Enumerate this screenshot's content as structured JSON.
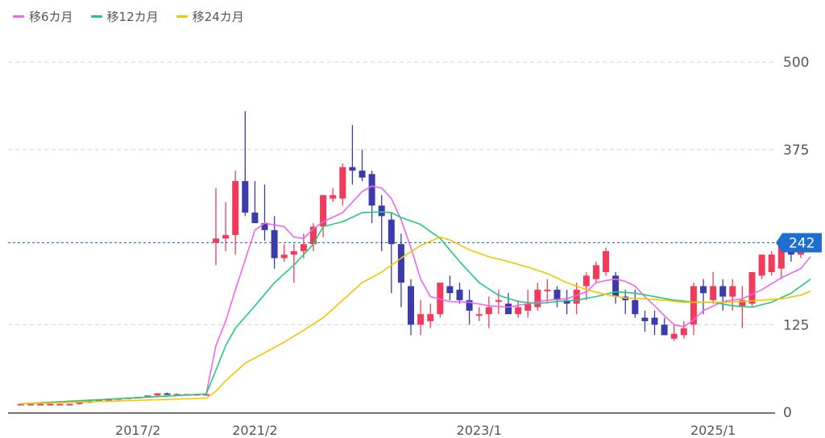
{
  "legend": [
    {
      "label": "移6カ月",
      "color": "#ee66ee"
    },
    {
      "label": "移12カ月",
      "color": "#22cc77"
    },
    {
      "label": "移24カ月",
      "color": "#f5c400"
    }
  ],
  "chart_data": {
    "type": "candlestick",
    "ylim": [
      0,
      500
    ],
    "yticks": [
      "500",
      "375",
      "125",
      "0"
    ],
    "xticks": [
      {
        "index": 12,
        "label": "2017/2"
      },
      {
        "index": 24,
        "label": "2021/2"
      },
      {
        "index": 47,
        "label": "2023/1"
      },
      {
        "index": 71,
        "label": "2025/1"
      }
    ],
    "colors": {
      "up": "#f23a5c",
      "down": "#3b3baa",
      "current": "#1e6fd1",
      "grid": "#d0d0d0"
    },
    "current_price": {
      "value": 242,
      "label": "242"
    },
    "candles": [
      [
        12,
        12,
        11,
        12
      ],
      [
        12,
        12,
        11,
        12
      ],
      [
        12,
        12,
        11,
        12
      ],
      [
        12,
        12,
        11,
        12
      ],
      [
        12,
        12,
        11,
        12
      ],
      [
        12,
        12,
        11,
        12
      ],
      [
        12,
        14,
        11,
        14
      ],
      [
        14,
        16,
        13,
        16
      ],
      [
        16,
        18,
        15,
        18
      ],
      [
        18,
        19,
        17,
        19
      ],
      [
        19,
        20,
        18,
        20
      ],
      [
        20,
        21,
        19,
        21
      ],
      [
        21,
        22,
        20,
        22
      ],
      [
        22,
        24,
        21,
        24
      ],
      [
        24,
        27,
        23,
        27
      ],
      [
        27,
        28,
        25,
        26
      ],
      [
        26,
        27,
        25,
        26
      ],
      [
        26,
        26,
        25,
        26
      ],
      [
        26,
        26,
        25,
        26
      ],
      [
        26,
        26,
        25,
        26
      ],
      [
        242,
        320,
        210,
        248
      ],
      [
        248,
        300,
        230,
        253
      ],
      [
        253,
        345,
        225,
        330
      ],
      [
        330,
        430,
        280,
        285
      ],
      [
        285,
        330,
        270,
        270
      ],
      [
        270,
        325,
        245,
        260
      ],
      [
        260,
        280,
        205,
        220
      ],
      [
        220,
        240,
        215,
        225
      ],
      [
        225,
        240,
        185,
        230
      ],
      [
        230,
        255,
        220,
        240
      ],
      [
        240,
        270,
        230,
        265
      ],
      [
        265,
        310,
        250,
        310
      ],
      [
        305,
        320,
        300,
        310
      ],
      [
        305,
        355,
        295,
        350
      ],
      [
        350,
        410,
        325,
        345
      ],
      [
        345,
        375,
        330,
        335
      ],
      [
        340,
        345,
        270,
        295
      ],
      [
        295,
        310,
        230,
        280
      ],
      [
        275,
        285,
        170,
        240
      ],
      [
        240,
        255,
        150,
        185
      ],
      [
        180,
        190,
        110,
        125
      ],
      [
        125,
        160,
        110,
        140
      ],
      [
        130,
        155,
        120,
        140
      ],
      [
        140,
        185,
        135,
        185
      ],
      [
        180,
        195,
        160,
        170
      ],
      [
        175,
        185,
        155,
        160
      ],
      [
        160,
        175,
        125,
        145
      ],
      [
        140,
        150,
        130,
        140
      ],
      [
        140,
        165,
        120,
        150
      ],
      [
        160,
        175,
        140,
        160
      ],
      [
        155,
        170,
        140,
        140
      ],
      [
        140,
        160,
        135,
        150
      ],
      [
        145,
        175,
        135,
        155
      ],
      [
        150,
        185,
        145,
        175
      ],
      [
        175,
        190,
        155,
        175
      ],
      [
        175,
        180,
        150,
        160
      ],
      [
        160,
        175,
        140,
        155
      ],
      [
        155,
        185,
        140,
        175
      ],
      [
        180,
        200,
        160,
        195
      ],
      [
        190,
        215,
        185,
        210
      ],
      [
        200,
        235,
        195,
        230
      ],
      [
        195,
        200,
        155,
        165
      ],
      [
        165,
        175,
        140,
        160
      ],
      [
        160,
        175,
        135,
        140
      ],
      [
        135,
        145,
        115,
        130
      ],
      [
        135,
        145,
        110,
        125
      ],
      [
        125,
        135,
        110,
        110
      ],
      [
        105,
        125,
        102,
        112
      ],
      [
        110,
        130,
        105,
        120
      ],
      [
        125,
        185,
        110,
        180
      ],
      [
        180,
        190,
        140,
        170
      ],
      [
        160,
        200,
        155,
        180
      ],
      [
        180,
        190,
        145,
        165
      ],
      [
        165,
        190,
        145,
        180
      ],
      [
        150,
        180,
        120,
        160
      ],
      [
        155,
        195,
        150,
        200
      ],
      [
        195,
        225,
        190,
        225
      ],
      [
        200,
        230,
        195,
        225
      ],
      [
        205,
        245,
        190,
        240
      ],
      [
        235,
        245,
        215,
        225
      ],
      [
        225,
        255,
        220,
        242
      ]
    ],
    "ma": [
      {
        "name": "移6カ月",
        "color": "#ee66ee",
        "points": [
          [
            0,
            12
          ],
          [
            19,
            26
          ],
          [
            20,
            95
          ],
          [
            21,
            130
          ],
          [
            22,
            175
          ],
          [
            24,
            260
          ],
          [
            25,
            270
          ],
          [
            27,
            265
          ],
          [
            28,
            250
          ],
          [
            29,
            248
          ],
          [
            30,
            262
          ],
          [
            31,
            272
          ],
          [
            33,
            285
          ],
          [
            35,
            315
          ],
          [
            36,
            323
          ],
          [
            37,
            320
          ],
          [
            38,
            305
          ],
          [
            39,
            275
          ],
          [
            40,
            235
          ],
          [
            41,
            190
          ],
          [
            42,
            165
          ],
          [
            44,
            158
          ],
          [
            46,
            157
          ],
          [
            48,
            152
          ],
          [
            50,
            150
          ],
          [
            52,
            155
          ],
          [
            54,
            160
          ],
          [
            56,
            162
          ],
          [
            58,
            172
          ],
          [
            59,
            185
          ],
          [
            60,
            188
          ],
          [
            61,
            190
          ],
          [
            62,
            187
          ],
          [
            63,
            180
          ],
          [
            64,
            165
          ],
          [
            65,
            152
          ],
          [
            66,
            138
          ],
          [
            67,
            125
          ],
          [
            68,
            122
          ],
          [
            69,
            132
          ],
          [
            70,
            145
          ],
          [
            72,
            158
          ],
          [
            74,
            162
          ],
          [
            76,
            175
          ],
          [
            78,
            192
          ],
          [
            80,
            205
          ],
          [
            81,
            222
          ]
        ]
      },
      {
        "name": "移12カ月",
        "color": "#22cc77",
        "points": [
          [
            0,
            12
          ],
          [
            19,
            26
          ],
          [
            20,
            60
          ],
          [
            21,
            95
          ],
          [
            22,
            120
          ],
          [
            24,
            152
          ],
          [
            26,
            185
          ],
          [
            28,
            210
          ],
          [
            30,
            240
          ],
          [
            31,
            265
          ],
          [
            33,
            272
          ],
          [
            35,
            285
          ],
          [
            37,
            286
          ],
          [
            38,
            285
          ],
          [
            39,
            278
          ],
          [
            41,
            268
          ],
          [
            43,
            248
          ],
          [
            45,
            215
          ],
          [
            47,
            185
          ],
          [
            49,
            167
          ],
          [
            51,
            158
          ],
          [
            53,
            155
          ],
          [
            55,
            158
          ],
          [
            57,
            160
          ],
          [
            59,
            165
          ],
          [
            61,
            172
          ],
          [
            63,
            170
          ],
          [
            65,
            165
          ],
          [
            67,
            160
          ],
          [
            69,
            157
          ],
          [
            71,
            157
          ],
          [
            73,
            152
          ],
          [
            75,
            150
          ],
          [
            77,
            157
          ],
          [
            79,
            170
          ],
          [
            81,
            190
          ]
        ]
      },
      {
        "name": "移24カ月",
        "color": "#f5c400",
        "points": [
          [
            0,
            12
          ],
          [
            19,
            20
          ],
          [
            20,
            30
          ],
          [
            21,
            45
          ],
          [
            23,
            70
          ],
          [
            25,
            85
          ],
          [
            27,
            100
          ],
          [
            29,
            117
          ],
          [
            31,
            135
          ],
          [
            33,
            160
          ],
          [
            35,
            185
          ],
          [
            37,
            200
          ],
          [
            39,
            220
          ],
          [
            41,
            238
          ],
          [
            43,
            250
          ],
          [
            44,
            246
          ],
          [
            46,
            232
          ],
          [
            48,
            222
          ],
          [
            50,
            215
          ],
          [
            52,
            207
          ],
          [
            54,
            198
          ],
          [
            56,
            185
          ],
          [
            58,
            175
          ],
          [
            60,
            168
          ],
          [
            62,
            163
          ],
          [
            64,
            162
          ],
          [
            66,
            160
          ],
          [
            68,
            157
          ],
          [
            70,
            157
          ],
          [
            72,
            157
          ],
          [
            74,
            158
          ],
          [
            76,
            160
          ],
          [
            78,
            162
          ],
          [
            80,
            167
          ],
          [
            81,
            173
          ]
        ]
      }
    ]
  }
}
